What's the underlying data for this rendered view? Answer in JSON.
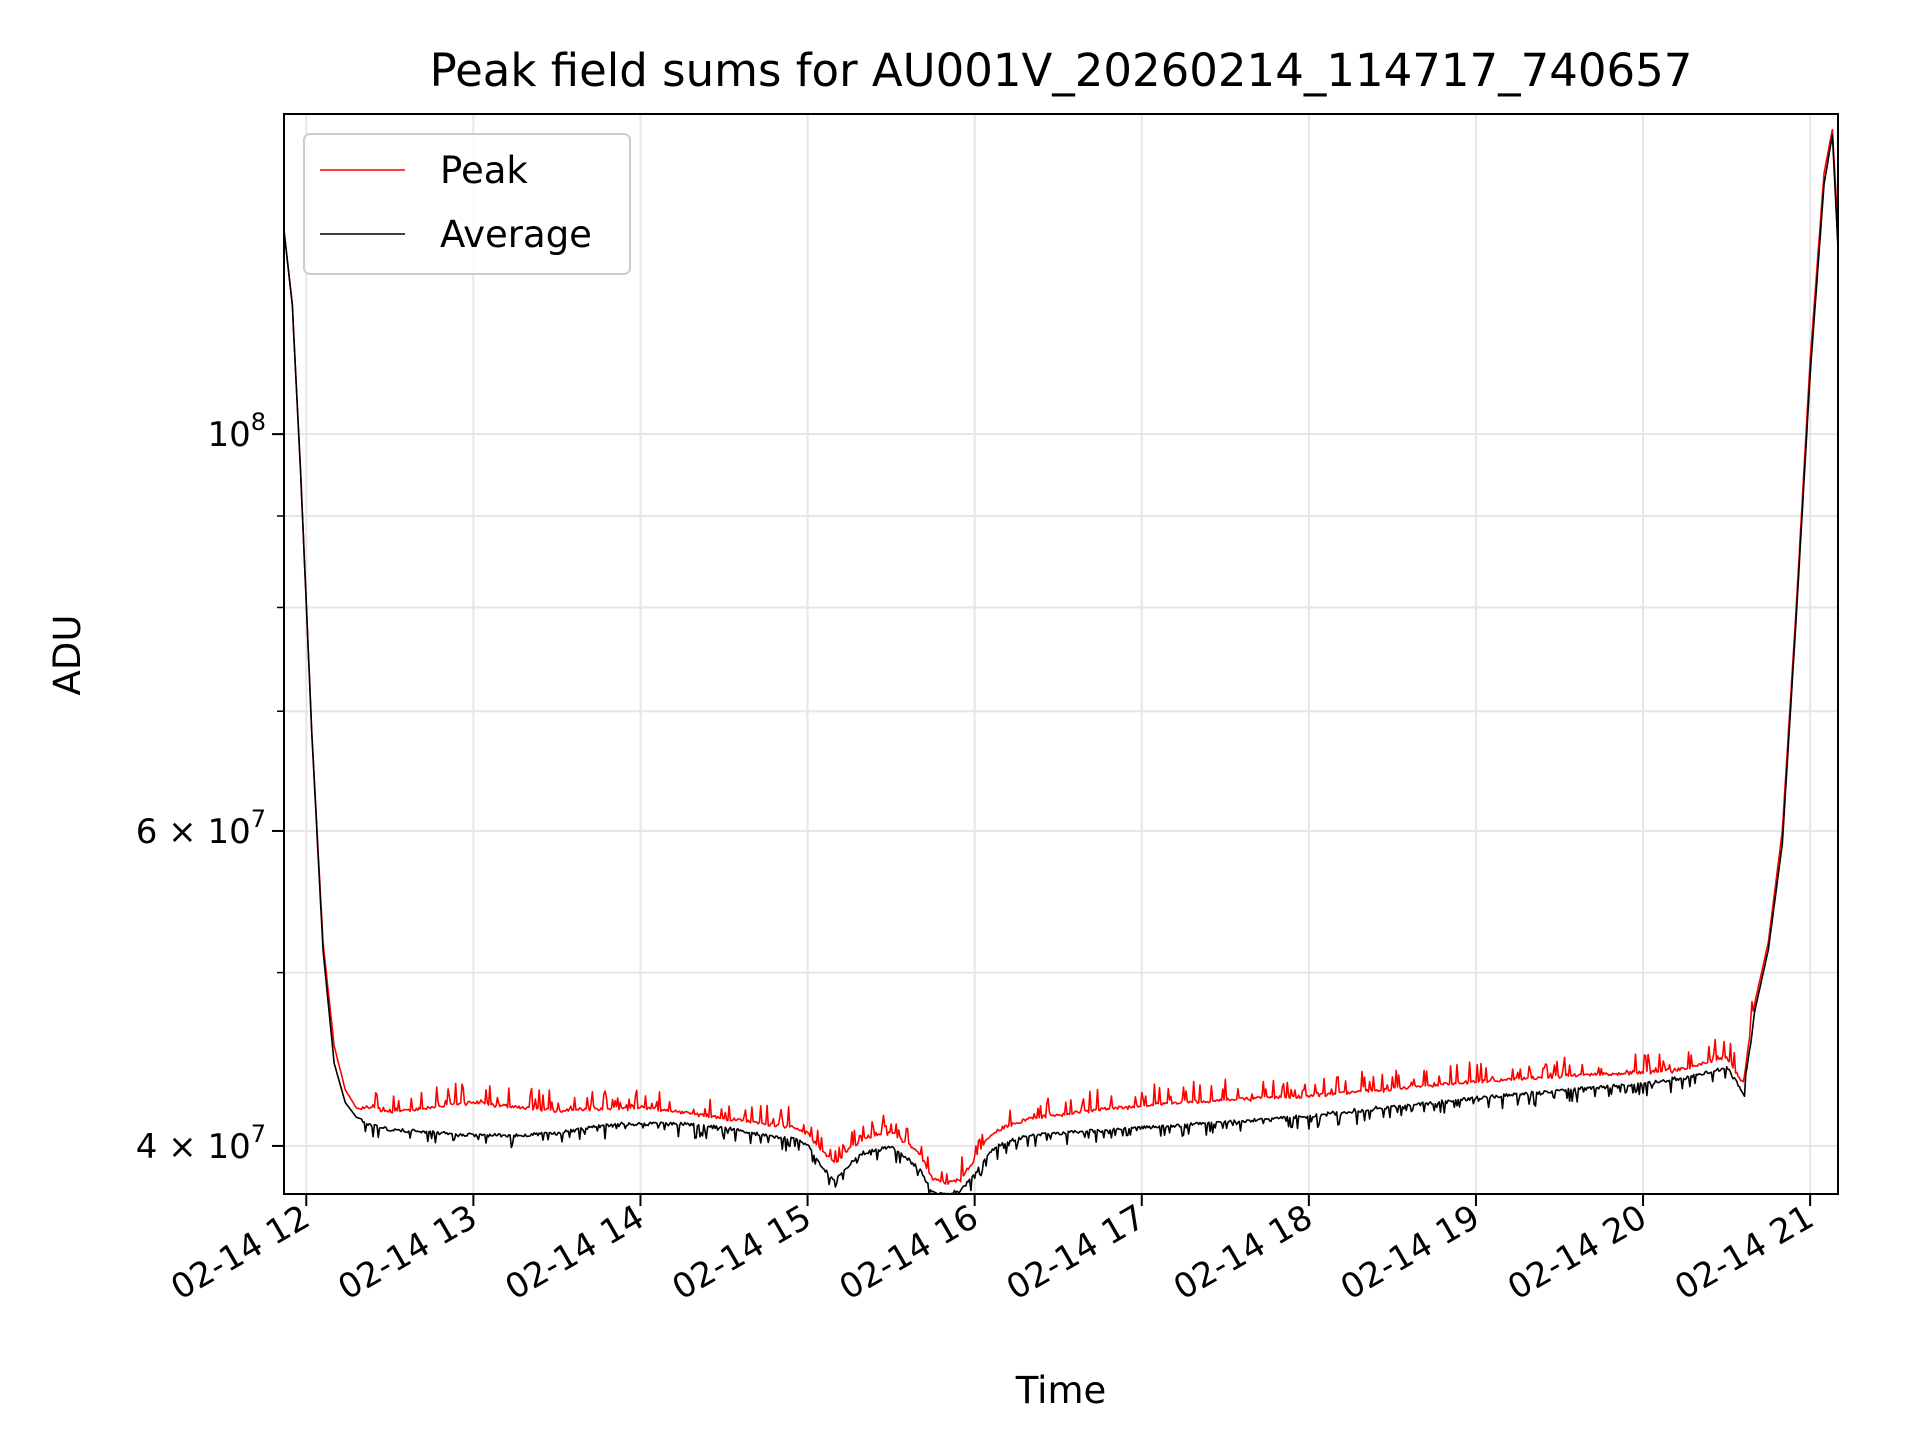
{
  "chart_data": {
    "type": "line",
    "title": "Peak field sums for AU001V_20260214_114717_740657",
    "xlabel": "Time",
    "ylabel": "ADU",
    "y_scale": "log",
    "ylim": [
      37600000,
      151000000
    ],
    "xlim": [
      "02-14 11:52",
      "02-14 21:10"
    ],
    "x_ticks": [
      "02-14 12",
      "02-14 13",
      "02-14 14",
      "02-14 15",
      "02-14 16",
      "02-14 17",
      "02-14 18",
      "02-14 19",
      "02-14 20",
      "02-14 21"
    ],
    "x_tick_times": [
      "02-14 12:00",
      "02-14 13:00",
      "02-14 14:00",
      "02-14 15:00",
      "02-14 16:00",
      "02-14 17:00",
      "02-14 18:00",
      "02-14 19:00",
      "02-14 20:00",
      "02-14 21:00"
    ],
    "y_major_ticks": [
      {
        "value": 100000000,
        "label": "10",
        "exp": "8"
      },
      {
        "value": 60000000,
        "label": "6 × 10",
        "exp": "7"
      },
      {
        "value": 40000000,
        "label": "4 × 10",
        "exp": "7"
      }
    ],
    "y_minor_ticks": [
      90000000,
      80000000,
      70000000,
      50000000
    ],
    "grid": true,
    "legend_position": "upper-left",
    "series": [
      {
        "name": "Peak",
        "color": "#ff0000",
        "x": [
          "02-14 11:52",
          "02-14 11:55",
          "02-14 11:58",
          "02-14 12:02",
          "02-14 12:06",
          "02-14 12:10",
          "02-14 12:14",
          "02-14 12:18",
          "02-14 12:24",
          "02-14 12:30",
          "02-14 12:40",
          "02-14 12:50",
          "02-14 13:00",
          "02-14 13:15",
          "02-14 13:30",
          "02-14 13:45",
          "02-14 14:00",
          "02-14 14:15",
          "02-14 14:30",
          "02-14 14:45",
          "02-14 14:55",
          "02-14 15:00",
          "02-14 15:05",
          "02-14 15:10",
          "02-14 15:15",
          "02-14 15:20",
          "02-14 15:30",
          "02-14 15:40",
          "02-14 15:45",
          "02-14 15:50",
          "02-14 15:55",
          "02-14 16:00",
          "02-14 16:05",
          "02-14 16:10",
          "02-14 16:20",
          "02-14 16:40",
          "02-14 17:00",
          "02-14 17:30",
          "02-14 18:00",
          "02-14 18:30",
          "02-14 19:00",
          "02-14 19:30",
          "02-14 20:00",
          "02-14 20:15",
          "02-14 20:25",
          "02-14 20:30",
          "02-14 20:36",
          "02-14 20:40",
          "02-14 20:45",
          "02-14 20:50",
          "02-14 20:55",
          "02-14 21:00",
          "02-14 21:05",
          "02-14 21:08",
          "02-14 21:10"
        ],
        "values": [
          130000000,
          118000000,
          95000000,
          68000000,
          52000000,
          45500000,
          43000000,
          42000000,
          41800000,
          41600000,
          41800000,
          42000000,
          42200000,
          41900000,
          41700000,
          41800000,
          41900000,
          41600000,
          41300000,
          41000000,
          40800000,
          40500000,
          39600000,
          39000000,
          39700000,
          40200000,
          40600000,
          39500000,
          38200000,
          38000000,
          38200000,
          39200000,
          40300000,
          40800000,
          41300000,
          41700000,
          42000000,
          42300000,
          42500000,
          42900000,
          43300000,
          43600000,
          43800000,
          44000000,
          44500000,
          44700000,
          43200000,
          48000000,
          52000000,
          60000000,
          80000000,
          110000000,
          140000000,
          148000000,
          130000000
        ]
      },
      {
        "name": "Average",
        "color": "#000000",
        "x": [
          "02-14 11:52",
          "02-14 11:55",
          "02-14 11:58",
          "02-14 12:02",
          "02-14 12:06",
          "02-14 12:10",
          "02-14 12:14",
          "02-14 12:18",
          "02-14 12:24",
          "02-14 12:30",
          "02-14 12:40",
          "02-14 12:50",
          "02-14 13:00",
          "02-14 13:15",
          "02-14 13:30",
          "02-14 13:45",
          "02-14 14:00",
          "02-14 14:15",
          "02-14 14:30",
          "02-14 14:45",
          "02-14 14:55",
          "02-14 15:00",
          "02-14 15:05",
          "02-14 15:10",
          "02-14 15:15",
          "02-14 15:20",
          "02-14 15:30",
          "02-14 15:40",
          "02-14 15:45",
          "02-14 15:50",
          "02-14 15:55",
          "02-14 16:00",
          "02-14 16:05",
          "02-14 16:10",
          "02-14 16:20",
          "02-14 16:40",
          "02-14 17:00",
          "02-14 17:30",
          "02-14 18:00",
          "02-14 18:30",
          "02-14 19:00",
          "02-14 19:30",
          "02-14 20:00",
          "02-14 20:15",
          "02-14 20:25",
          "02-14 20:30",
          "02-14 20:36",
          "02-14 20:40",
          "02-14 20:45",
          "02-14 20:50",
          "02-14 20:55",
          "02-14 21:00",
          "02-14 21:05",
          "02-14 21:08",
          "02-14 21:10"
        ],
        "values": [
          130000000,
          118000000,
          95000000,
          68000000,
          51500000,
          44500000,
          42300000,
          41500000,
          41200000,
          41000000,
          40900000,
          40800000,
          40700000,
          40700000,
          40800000,
          41200000,
          41300000,
          41300000,
          41100000,
          40700000,
          40500000,
          40200000,
          39100000,
          38400000,
          39200000,
          39800000,
          40100000,
          39000000,
          37800000,
          37700000,
          37900000,
          38700000,
          39800000,
          40300000,
          40700000,
          40900000,
          41100000,
          41400000,
          41700000,
          42200000,
          42700000,
          43100000,
          43500000,
          43800000,
          44200000,
          44400000,
          43000000,
          47500000,
          51500000,
          59000000,
          79000000,
          108000000,
          138000000,
          147000000,
          127000000
        ]
      }
    ]
  }
}
